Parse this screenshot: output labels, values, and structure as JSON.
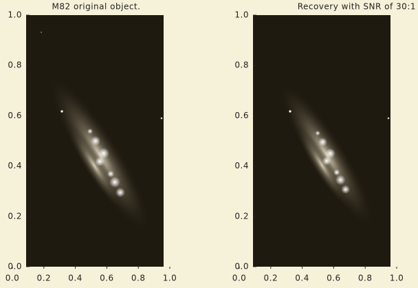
{
  "chart_data": [
    {
      "type": "image",
      "title": "M82 original object.",
      "xlim": [
        0,
        1
      ],
      "ylim": [
        0,
        1
      ],
      "xticks": [
        {
          "value": 0,
          "label": "0.0"
        },
        0.2,
        0.4,
        0.6,
        0.8,
        {
          "value": 1,
          "label": "1.0"
        }
      ],
      "yticks": [
        {
          "value": 0,
          "label": "0.0"
        },
        0.2,
        0.4,
        0.6,
        0.8,
        {
          "value": 1,
          "label": "1.0"
        }
      ]
    },
    {
      "type": "image",
      "title": "Recovery with SNR of 30:1",
      "xlim": [
        0,
        1
      ],
      "ylim": [
        0,
        1
      ],
      "xticks": [
        {
          "value": 0,
          "label": "0.0"
        },
        0.2,
        0.4,
        0.6,
        0.8,
        {
          "value": 1,
          "label": "1.0"
        }
      ],
      "yticks": [
        {
          "value": 0,
          "label": "0.0"
        },
        0.2,
        0.4,
        0.6,
        0.8,
        {
          "value": 1,
          "label": "1.0"
        }
      ]
    }
  ]
}
